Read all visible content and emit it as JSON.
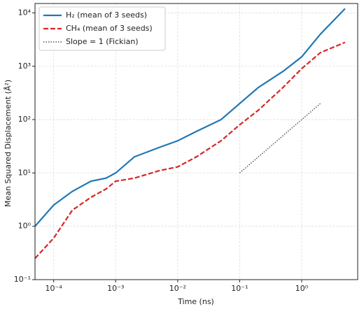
{
  "chart_data": {
    "type": "line",
    "log_x": true,
    "log_y": true,
    "grid": true,
    "legend": "upper left",
    "xlabel": "Time (ns)",
    "ylabel": "Mean Squared Displacement (Å²)",
    "xlim": [
      5e-05,
      8
    ],
    "ylim": [
      0.1,
      15000
    ],
    "xticks": [
      {
        "value": 0.0001,
        "label": "10⁻⁴"
      },
      {
        "value": 0.001,
        "label": "10⁻³"
      },
      {
        "value": 0.01,
        "label": "10⁻²"
      },
      {
        "value": 0.1,
        "label": "10⁻¹"
      },
      {
        "value": 1,
        "label": "10⁰"
      }
    ],
    "yticks": [
      {
        "value": 0.1,
        "label": "10⁻¹"
      },
      {
        "value": 1,
        "label": "10⁰"
      },
      {
        "value": 10,
        "label": "10¹"
      },
      {
        "value": 100,
        "label": "10²"
      },
      {
        "value": 1000,
        "label": "10³"
      },
      {
        "value": 10000,
        "label": "10⁴"
      }
    ],
    "series": [
      {
        "name": "H₂ (mean of 3 seeds)",
        "color": "#1f77b4",
        "dash": "solid",
        "x": [
          5e-05,
          0.0001,
          0.0002,
          0.0004,
          0.0007,
          0.001,
          0.002,
          0.005,
          0.01,
          0.02,
          0.05,
          0.1,
          0.2,
          0.5,
          1,
          2,
          5
        ],
        "values": [
          1.0,
          2.5,
          4.5,
          7,
          8,
          10,
          20,
          30,
          40,
          60,
          100,
          200,
          400,
          800,
          1500,
          4000,
          12000
        ]
      },
      {
        "name": "CH₄ (mean of 3 seeds)",
        "color": "#d62728",
        "dash": "dashed",
        "x": [
          5e-05,
          0.0001,
          0.0002,
          0.0004,
          0.0007,
          0.001,
          0.002,
          0.005,
          0.01,
          0.02,
          0.05,
          0.1,
          0.2,
          0.5,
          1,
          2,
          5
        ],
        "values": [
          0.25,
          0.6,
          2.0,
          3.5,
          5,
          7,
          8,
          11,
          13,
          20,
          40,
          80,
          150,
          400,
          900,
          1800,
          2800
        ]
      },
      {
        "name": "Slope = 1 (Fickian)",
        "color": "#333333",
        "dash": "dotted",
        "x": [
          0.1,
          2
        ],
        "values": [
          10,
          200
        ]
      }
    ]
  }
}
